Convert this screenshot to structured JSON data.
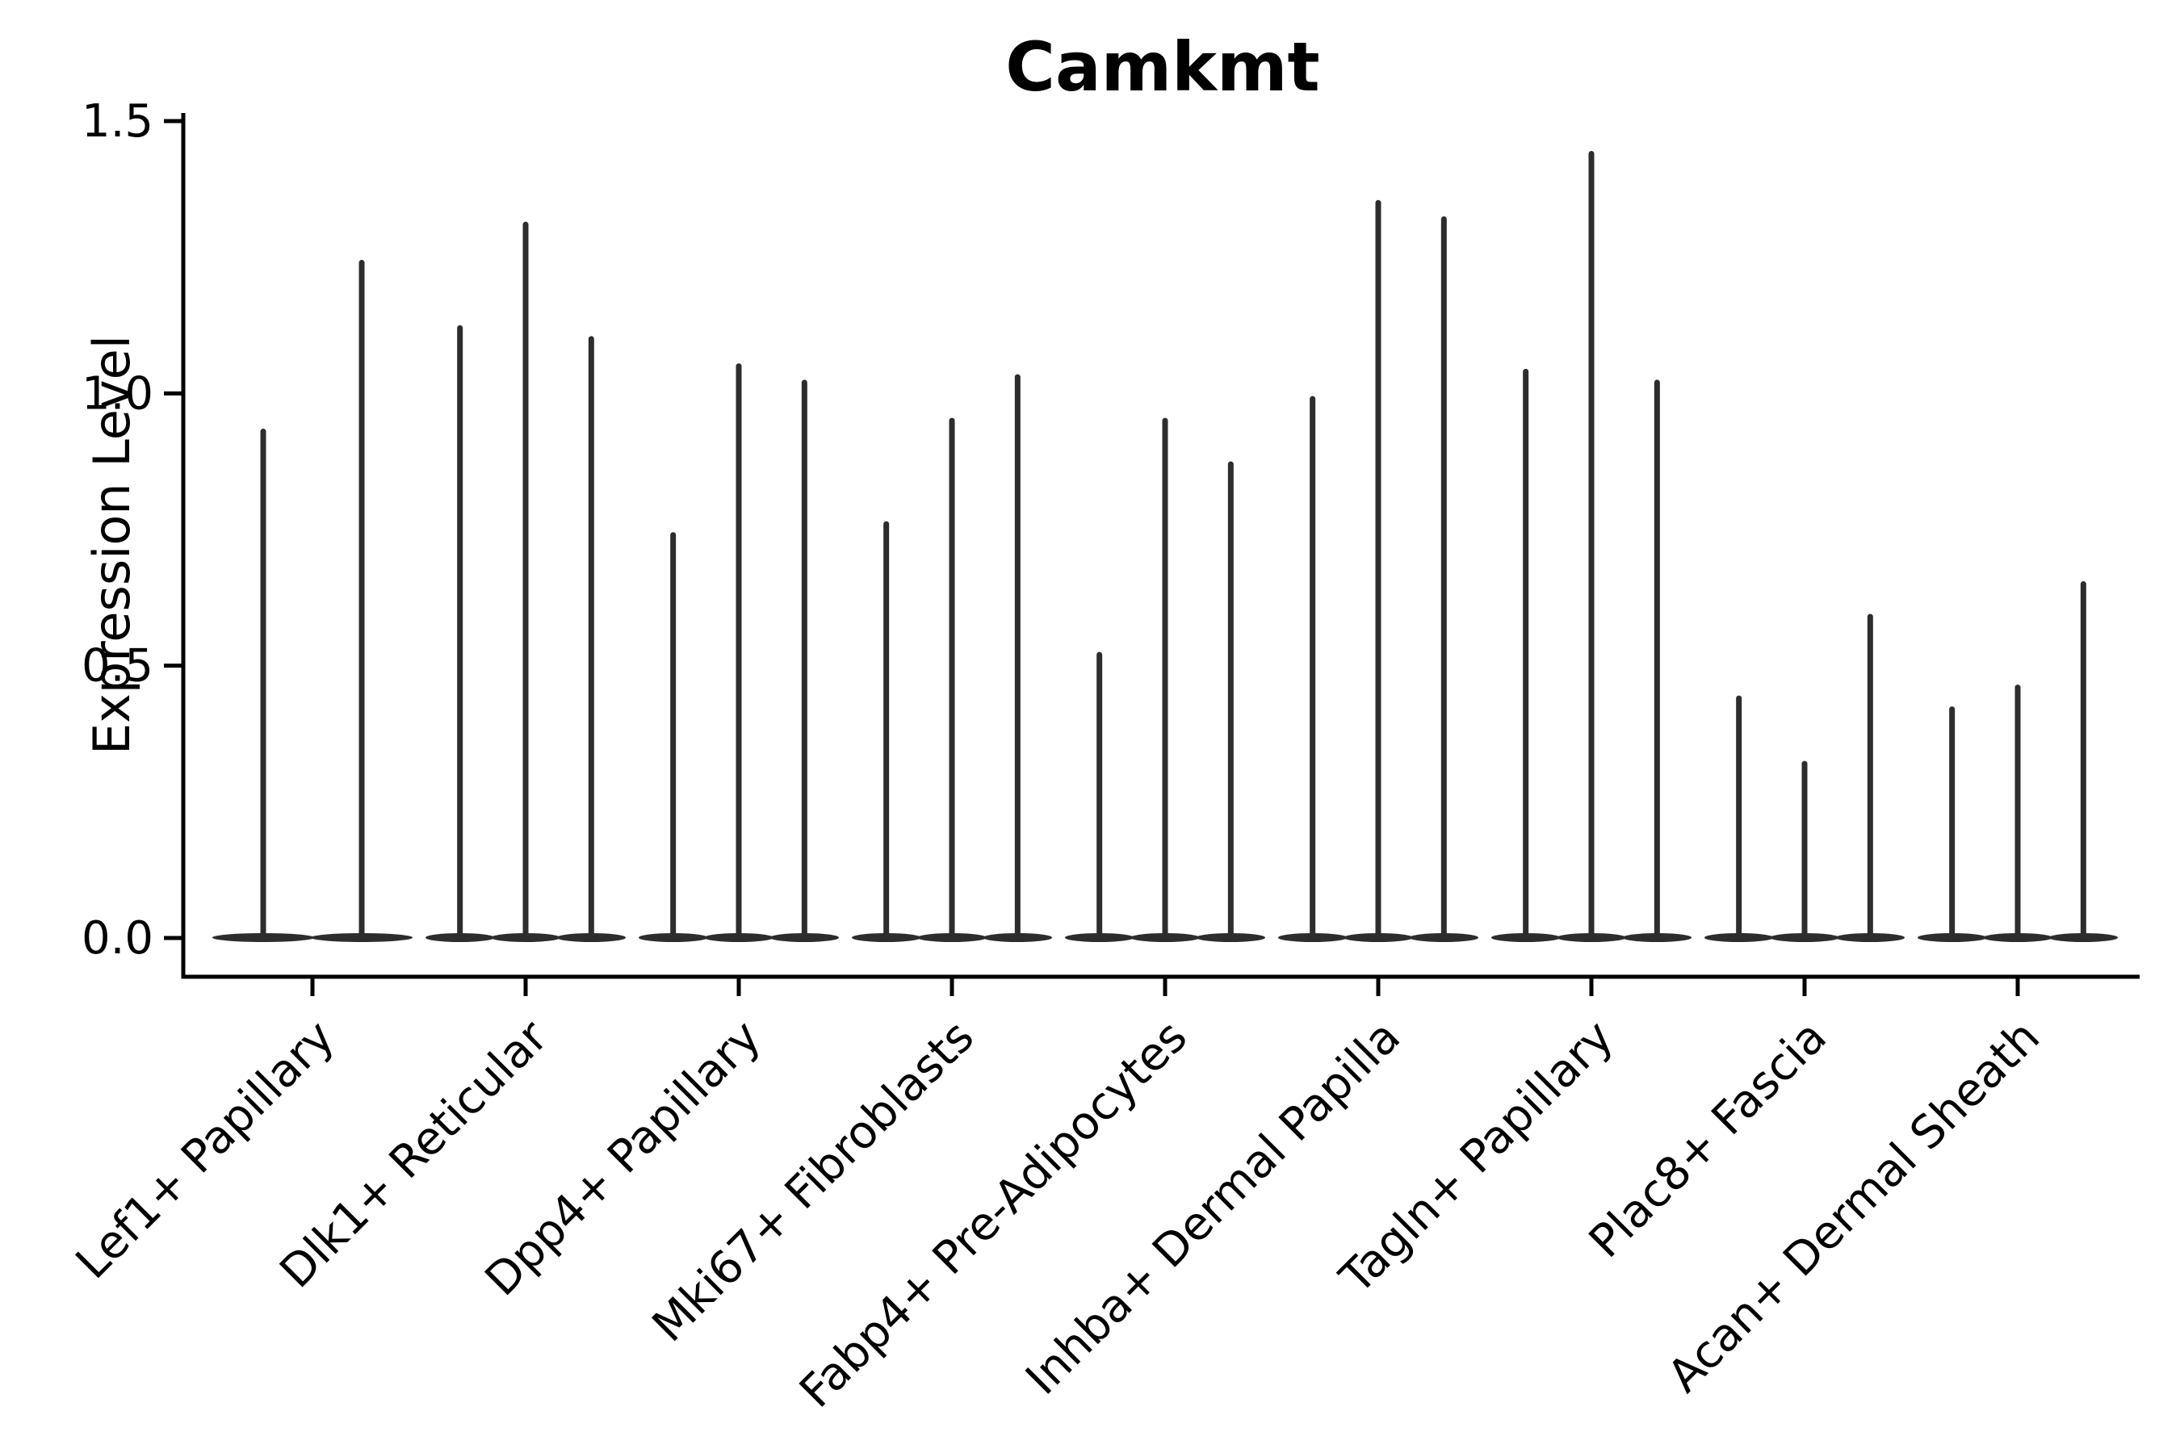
{
  "title": "Camkmt",
  "axes": {
    "y_label": "Expression Level",
    "y_tick_labels": [
      "0.0",
      "0.5",
      "1.0",
      "1.5"
    ],
    "x_tick_labels": [
      "Lef1+ Papillary",
      "Dlk1+ Reticular",
      "Dpp4+ Papillary",
      "Mki67+ Fibroblasts",
      "Fabp4+ Pre-Adipocytes",
      "Inhba+ Dermal Papilla",
      "Tagln+ Papillary",
      "Plac8+ Fascia",
      "Acan+ Dermal Sheath"
    ]
  },
  "chart_data": {
    "type": "violin",
    "title": "Camkmt",
    "xlabel": "",
    "ylabel": "Expression Level",
    "ylim": [
      0,
      1.5
    ],
    "yticks": [
      0,
      0.5,
      1.0,
      1.5
    ],
    "grid": false,
    "legend": "none",
    "background_color": "#ffffff",
    "ink_color": "#2d2d2d",
    "axis_color": "#000000",
    "categories": [
      "Lef1+ Papillary",
      "Dlk1+ Reticular",
      "Dpp4+ Papillary",
      "Mki67+ Fibroblasts",
      "Fabp4+ Pre-Adipocytes",
      "Inhba+ Dermal Papilla",
      "Tagln+ Papillary",
      "Plac8+ Fascia",
      "Acan+ Dermal Sheath"
    ],
    "groups": [
      {
        "category": "Lef1+ Papillary",
        "violin_peaks": [
          0.93,
          1.24
        ]
      },
      {
        "category": "Dlk1+ Reticular",
        "violin_peaks": [
          1.12,
          1.31,
          1.1
        ]
      },
      {
        "category": "Dpp4+ Papillary",
        "violin_peaks": [
          0.74,
          1.05,
          1.02
        ]
      },
      {
        "category": "Mki67+ Fibroblasts",
        "violin_peaks": [
          0.76,
          0.95,
          1.03
        ]
      },
      {
        "category": "Fabp4+ Pre-Adipocytes",
        "violin_peaks": [
          0.52,
          0.95,
          0.87
        ]
      },
      {
        "category": "Inhba+ Dermal Papilla",
        "violin_peaks": [
          0.99,
          1.35,
          1.32
        ]
      },
      {
        "category": "Tagln+ Papillary",
        "violin_peaks": [
          1.04,
          1.44,
          1.02
        ]
      },
      {
        "category": "Plac8+ Fascia",
        "violin_peaks": [
          0.44,
          0.32,
          0.59
        ]
      },
      {
        "category": "Acan+ Dermal Sheath",
        "violin_peaks": [
          0.42,
          0.46,
          0.65
        ]
      }
    ],
    "description": "Needle-thin violin plot of Camkmt expression; each category shows violins collapsed to a flat base at 0 with a thin spike up to the listed maximum expression value."
  }
}
